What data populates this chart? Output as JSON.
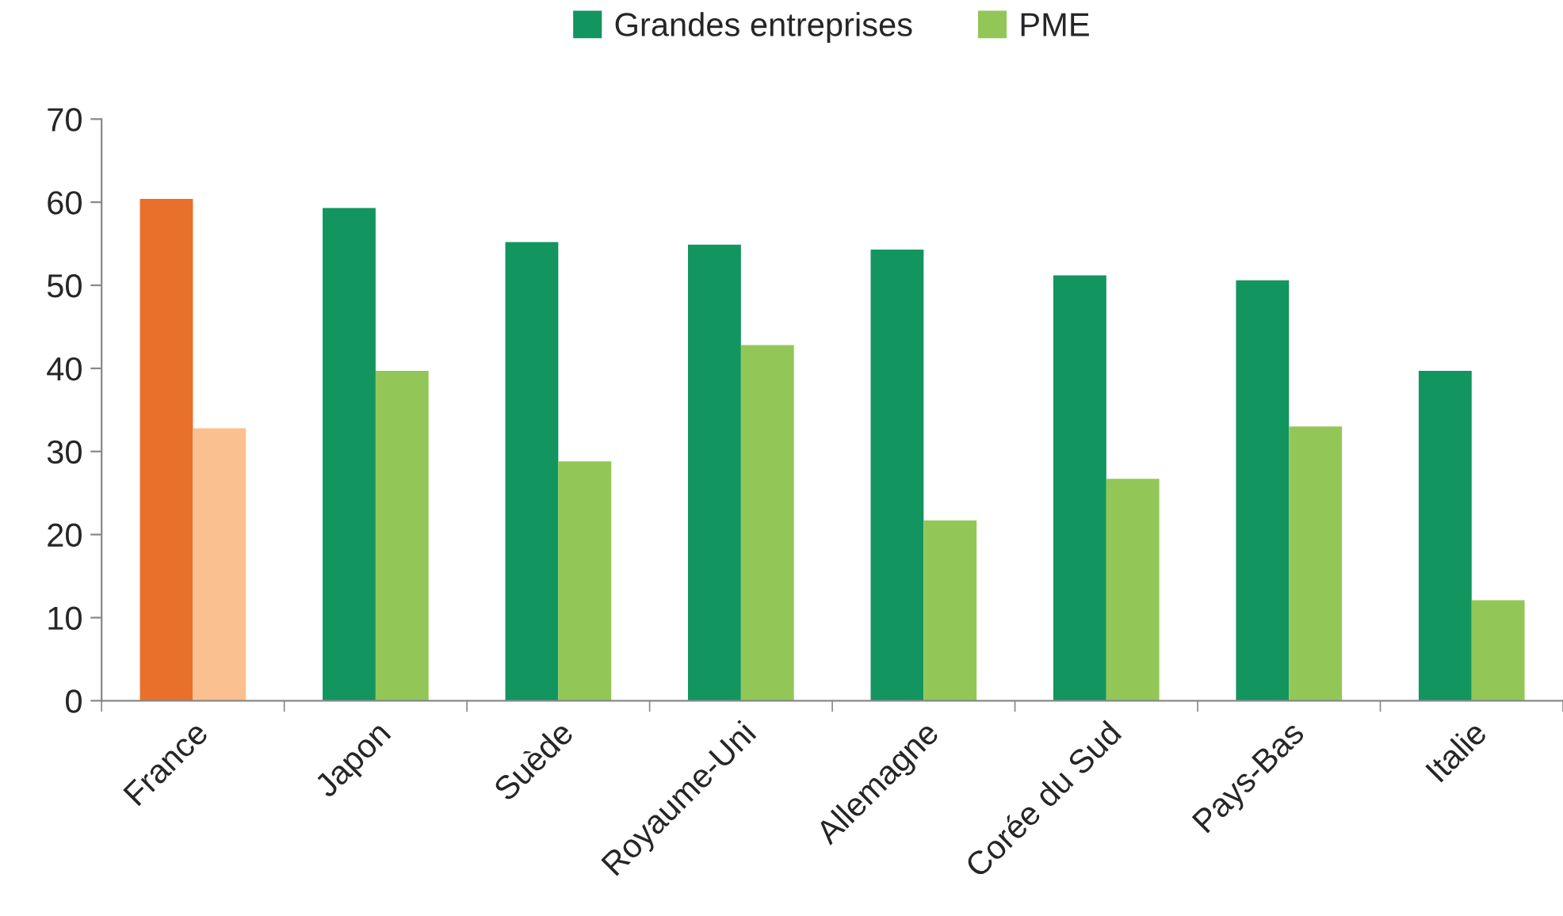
{
  "chart_data": {
    "type": "bar",
    "categories": [
      "France",
      "Japon",
      "Suède",
      "Royaume-Uni",
      "Allemagne",
      "Corée du Sud",
      "Pays-Bas",
      "Italie"
    ],
    "series": [
      {
        "name": "Grandes entreprises",
        "color": "#12955f",
        "colors": [
          "#e8702a",
          "#12955f",
          "#12955f",
          "#12955f",
          "#12955f",
          "#12955f",
          "#12955f",
          "#12955f"
        ],
        "values": [
          60.4,
          59.3,
          55.2,
          54.9,
          54.3,
          51.2,
          50.6,
          39.7
        ]
      },
      {
        "name": "PME",
        "color": "#92c757",
        "colors": [
          "#fbc08f",
          "#92c757",
          "#92c757",
          "#92c757",
          "#92c757",
          "#92c757",
          "#92c757",
          "#92c757"
        ],
        "values": [
          32.8,
          39.7,
          28.8,
          42.8,
          21.7,
          26.7,
          33.0,
          12.1
        ]
      }
    ],
    "ylim": [
      0,
      70
    ],
    "yticks": [
      0,
      10,
      20,
      30,
      40,
      50,
      60,
      70
    ],
    "grid": false,
    "legend": "top"
  }
}
